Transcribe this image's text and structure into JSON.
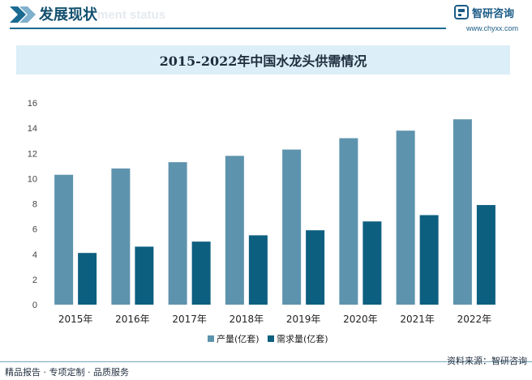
{
  "header": {
    "title": "发展现状",
    "watermark_text": "ment status",
    "brand_name": "智研咨询",
    "brand_url": "www.chyxx.com"
  },
  "chart_data": {
    "type": "bar",
    "title": "2015-2022年中国水龙头供需情况",
    "categories": [
      "2015年",
      "2016年",
      "2017年",
      "2018年",
      "2019年",
      "2020年",
      "2021年",
      "2022年"
    ],
    "series": [
      {
        "name": "产量(亿套)",
        "color": "#5e93ad",
        "values": [
          10.3,
          10.8,
          11.3,
          11.8,
          12.3,
          13.2,
          13.8,
          14.7
        ]
      },
      {
        "name": "需求量(亿套)",
        "color": "#0d5f80",
        "values": [
          4.1,
          4.6,
          5.0,
          5.5,
          5.9,
          6.6,
          7.1,
          7.9
        ]
      }
    ],
    "yticks": [
      "0",
      "2",
      "4",
      "6",
      "8",
      "10",
      "12",
      "14",
      "16"
    ],
    "ylim": [
      0,
      16
    ],
    "xlabel": "",
    "ylabel": "",
    "grid": false,
    "legend_position": "bottom"
  },
  "footer": {
    "left": "精品报告 · 专项定制 · 品质服务",
    "right": "资料来源：智研咨询"
  },
  "colors": {
    "accent": "#1b6a91",
    "title_band": "#dceef7"
  }
}
